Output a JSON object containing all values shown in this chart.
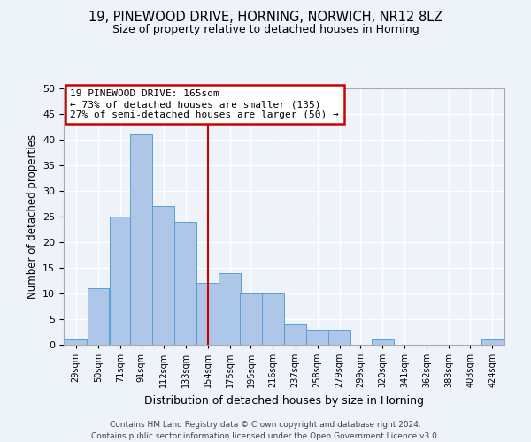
{
  "title1": "19, PINEWOOD DRIVE, HORNING, NORWICH, NR12 8LZ",
  "title2": "Size of property relative to detached houses in Horning",
  "xlabel": "Distribution of detached houses by size in Horning",
  "ylabel": "Number of detached properties",
  "annotation_line1": "19 PINEWOOD DRIVE: 165sqm",
  "annotation_line2": "← 73% of detached houses are smaller (135)",
  "annotation_line3": "27% of semi-detached houses are larger (50) →",
  "property_size": 165,
  "footer1": "Contains HM Land Registry data © Crown copyright and database right 2024.",
  "footer2": "Contains public sector information licensed under the Open Government Licence v3.0.",
  "bar_color": "#aec6e8",
  "bar_edge_color": "#5a9fd4",
  "vline_color": "#cc0000",
  "annotation_box_color": "#cc0000",
  "background_color": "#eef2f9",
  "grid_color": "#ffffff",
  "bins": [
    29,
    50,
    71,
    91,
    112,
    133,
    154,
    175,
    195,
    216,
    237,
    258,
    279,
    299,
    320,
    341,
    362,
    383,
    403,
    424,
    445
  ],
  "counts": [
    1,
    11,
    25,
    41,
    27,
    24,
    12,
    14,
    10,
    10,
    4,
    3,
    3,
    0,
    1,
    0,
    0,
    0,
    0,
    1
  ],
  "ylim": [
    0,
    50
  ],
  "yticks": [
    0,
    5,
    10,
    15,
    20,
    25,
    30,
    35,
    40,
    45,
    50
  ]
}
